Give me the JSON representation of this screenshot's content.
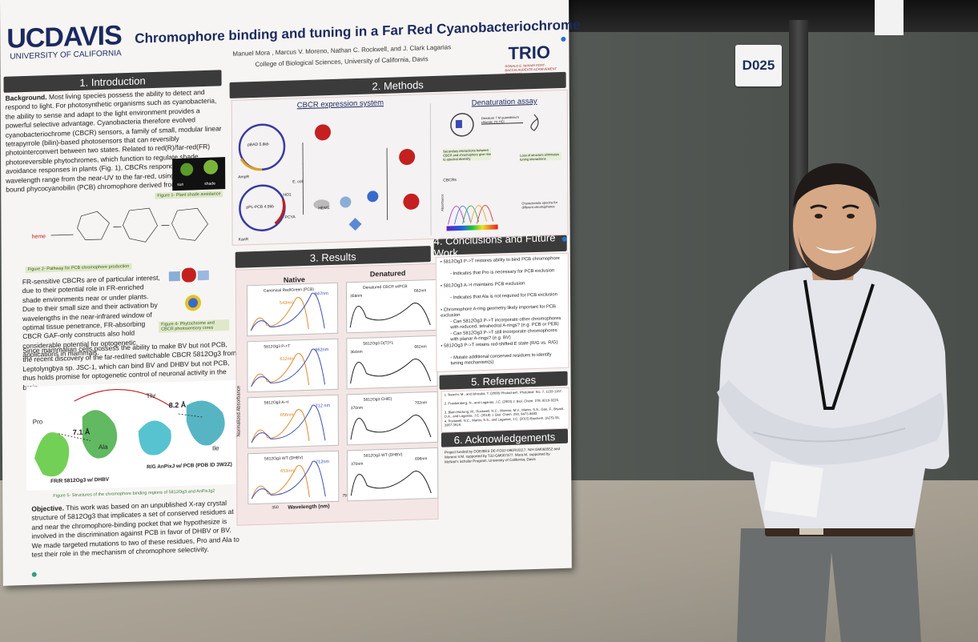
{
  "board_tag": "D025",
  "poster": {
    "logo_main": "UCDAVIS",
    "logo_sub": "UNIVERSITY OF CALIFORNIA",
    "title": "Chromophore binding and tuning in a Far Red Cyanobacteriochrome",
    "authors": "Manuel Mora , Marcus V. Moreno, Nathan C. Rockwell, and J. Clark Lagarias",
    "affiliation": "College of Biological Sciences, University of California, Davis",
    "trio_logo": "TRIO",
    "trio_sub": "RONALD E. McNAIR POST-BACCALAUREATE ACHIEVEMENT PROGRAM",
    "sections": {
      "intro": "1. Introduction",
      "methods": "2. Methods",
      "results": "3. Results",
      "conclusions": "4. Conclusions and Future Work",
      "references": "5. References",
      "acknowledgements": "6. Acknowledgements"
    },
    "intro_background_label": "Background.",
    "intro_background": "Most living species possess the ability to detect and respond to light. For photosynthetic organisms such as cyanobacteria, the ability to sense and adapt to the light environment provides a powerful selective advantage. Cyanobacteria therefore evolved cyanobacteriochrome (CBCR) sensors, a family of small, modular linear tetrapyrrole (bilin)-based photosensors that can reversibly photointerconvert between two states. Related to red(R)/far-red(FR) photoreversible phytochromes, which function to regulate shade avoidance responses in plants (Fig. 1), CBCRs respond to a broad wavelength range from the near-UV to the far-red, using a covalently bound phycocyanobilin (PCB) chromophore derived from heme (Fig. 2).",
    "fig1_caption": "Figure 1- Plant shade avoidance",
    "fig1_sun": "sun",
    "fig1_shade": "shade",
    "fig2_caption": "Figure 2- Pathway for PCB chromophore production",
    "fig2_heme": "heme",
    "intro_fr": "FR-sensitive CBCRs are of particular interest, due to their potential role in FR-enriched shade environments near or under plants. Due to their small size and their activation by wavelengths in the near-infrared window of optimal tissue penetrance, FR-absorbing CBCR GAF-only constructs also hold considerable potential for optogenetic applications in mammals.",
    "fig4_caption": "Figure 4- Phytochrome and CBCR photosensory cores",
    "intro_bv": "Since mammalian cells possess the ability to make BV but not PCB, the recent discovery of the far-red/red switchable CBCR 5812Og3 from Leptolyngbya sp. JSC-1, which can bind BV and DHBV but not PCB, thus holds promise for optogenetic control of neuronal activity in the brain.",
    "fig5_labels": {
      "pro": "Pro",
      "thr": "Thr",
      "ala": "Ala",
      "ile": "Ile",
      "d1": "7.1 Å",
      "d2": "8.2 Å"
    },
    "fig5_left_label": "FR/R 5812Og3 w/ DHBV",
    "fig5_right_label": "R/G AnPixJ w/ PCB (PDB ID 3W2Z)",
    "fig5_caption": "Figure 5- Structures of the chromophore binding regions of 5812Og3 and AnPixJg2",
    "objective_label": "Objective.",
    "objective": "This work was based on an unpublished X-ray crystal structure of 5812Og3 that implicates a set of conserved residues at and near the chromophore-binding pocket that we hypothesize is involved in the discrimination against PCB in favor of DHBV or BV. We made targeted mutations to two of these residues, Pro and Ala to test their role in the mechanism of chromophore selectivity.",
    "methods": {
      "cbcr_system": "CBCR expression system",
      "denaturation": "Denaturation assay",
      "plasmid1": "pBAD 5.8kb",
      "plasmid2": "pPL-PCB 4.9kb",
      "amp": "AmpR",
      "kan": "KanR",
      "pcy": "PCYA",
      "ecoli": "E. coli",
      "heme": "HEME",
      "ho1": "HO1",
      "denature_note": "Denature 7 M guanidinium chloride 1% HCl",
      "secondary_note": "Secondary interactions between CBCR and chromophore give rise to spectral diversity",
      "loss_note": "Loss of structure eliminates tuning interactions",
      "characteristic_note": "Characteristic spectra for different chromophores",
      "cbcrs": "CBCRs",
      "absorbance": "Absorbance"
    },
    "results": {
      "native": "Native",
      "denatured": "Denatured",
      "y_axis": "Normalized Absorbance",
      "x_axis": "Wavelength (nm)",
      "x_min": "350",
      "x_max": "750",
      "panels": [
        {
          "label": "Canonical Red/Green (PCB)",
          "peak_a": "543nm",
          "peak_b": "647nm"
        },
        {
          "label": "Denatured CBCR w/PCB",
          "peak_a": "358nm",
          "peak_b": "662nm"
        },
        {
          "label": "5812Og3 P->T",
          "peak_a": "612nm",
          "peak_b": "662nm"
        },
        {
          "label": "5812Og3 D(T)YL",
          "peak_a": "364nm",
          "peak_b": "662nm"
        },
        {
          "label": "5812Og3 A->I",
          "peak_a": "656nm",
          "peak_b": "712 nm"
        },
        {
          "label": "5812Og3 CHIE(",
          "peak_a": "370nm",
          "peak_b": "702nm"
        },
        {
          "label": "5812Og3 WT (DHBV)",
          "peak_a": "653nm",
          "peak_b": "712nm"
        },
        {
          "label": "5812Og3 WT (DHBV)",
          "peak_a": "370nm",
          "peak_b": "696nm"
        }
      ]
    },
    "conclusions": [
      "5812Og3 P->T restores ability to bind PCB chromophore",
      "Indicates that Pro is necessary for PCB exclusion",
      "5812Og3 A->I maintains PCB exclusion",
      "Indicates that Ala is not required for PCB exclusion",
      "Chromophore A-ring geometry likely important for PCB exclusion",
      "Can 5812Og3 P->T incorporate other chromophores with reduced, tetrahedral A-rings? (e.g. PCB or PEB)",
      "Can 5812Og3 P->T still incorporate chromophores with planar A-rings? (e.g. BV)",
      "5812Og3 P->T retains red-shifted E state (R/G vs. R/G)",
      "Mutate additional conserved residues to identify tuning mechanism(s)"
    ],
    "references": [
      "1. Ikeuchi, M., and Ishizuka, T. (2008) Photochem. Photobiol. Sci. 7, 1159-1167.",
      "2. Frankenberg, N., and Lagarias, J.C. (2003) J. Biol. Chem. 278, 9219-9226.",
      "3. Blain-Hartung, M., Rockwell, N.C., Moreno, M.V., Martin, S.S., Gan, F., Bryant, D.A., and Lagarias, J.C. (2018) J. Biol. Chem. 293, 8473-8483.",
      "4. Rockwell, N.C., Martin, S.S., and Lagarias, J.C. (2015) Biochem. (ACS) 55, 3907-3919."
    ],
    "acknowledgements": "Project funded by DOE/BES DE-FG02-09ER16117. NIH GM068552 and Moreno V.M. supported by T32-GM007377. Mora M. supported by McNair's Scholar Program, University of California, Davis"
  }
}
